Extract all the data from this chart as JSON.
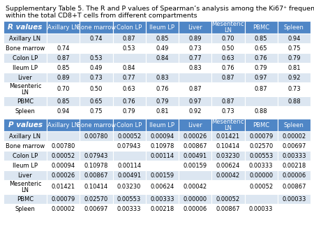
{
  "title_line1": "Supplementary Table 5. The R and P values of Spearman’s analysis among the Ki67⁺ frequency",
  "title_line2": "within the total CD8+T cells from different compartments",
  "columns": [
    "Axillary LN",
    "Bone marrow",
    "Colon LP",
    "Ileum LP",
    "Liver",
    "Mesenteric\nLN",
    "PBMC",
    "Spleen"
  ],
  "r_rows": [
    [
      "Axillary LN",
      "",
      "0.74",
      "0.87",
      "0.85",
      "0.89",
      "0.70",
      "0.85",
      "0.94"
    ],
    [
      "Bone marrow",
      "0.74",
      "",
      "0.53",
      "0.49",
      "0.73",
      "0.50",
      "0.65",
      "0.75"
    ],
    [
      "Colon LP",
      "0.87",
      "0.53",
      "",
      "0.84",
      "0.77",
      "0.63",
      "0.76",
      "0.79"
    ],
    [
      "Ileum LP",
      "0.85",
      "0.49",
      "0.84",
      "",
      "0.83",
      "0.76",
      "0.79",
      "0.81"
    ],
    [
      "Liver",
      "0.89",
      "0.73",
      "0.77",
      "0.83",
      "",
      "0.87",
      "0.97",
      "0.92"
    ],
    [
      "Mesenteric\nLN",
      "0.70",
      "0.50",
      "0.63",
      "0.76",
      "0.87",
      "",
      "0.87",
      "0.73"
    ],
    [
      "PBMC",
      "0.85",
      "0.65",
      "0.76",
      "0.79",
      "0.97",
      "0.87",
      "",
      "0.88"
    ],
    [
      "Spleen",
      "0.94",
      "0.75",
      "0.79",
      "0.81",
      "0.92",
      "0.73",
      "0.88",
      ""
    ]
  ],
  "p_rows": [
    [
      "Axillary LN",
      "",
      "0.00780",
      "0.00052",
      "0.00094",
      "0.00026",
      "0.01421",
      "0.00079",
      "0.00002"
    ],
    [
      "Bone marrow",
      "0.00780",
      "",
      "0.07943",
      "0.10978",
      "0.00867",
      "0.10414",
      "0.02570",
      "0.00697"
    ],
    [
      "Colon LP",
      "0.00052",
      "0.07943",
      "",
      "0.00114",
      "0.00491",
      "0.03230",
      "0.00553",
      "0.00333"
    ],
    [
      "Ileum LP",
      "0.00094",
      "0.10978",
      "0.00114",
      "",
      "0.00159",
      "0.00624",
      "0.00333",
      "0.00218"
    ],
    [
      "Liver",
      "0.00026",
      "0.00867",
      "0.00491",
      "0.00159",
      "",
      "0.00042",
      "0.00000",
      "0.00006"
    ],
    [
      "Mesenteric\nLN",
      "0.01421",
      "0.10414",
      "0.03230",
      "0.00624",
      "0.00042",
      "",
      "0.00052",
      "0.00867"
    ],
    [
      "PBMC",
      "0.00079",
      "0.02570",
      "0.00553",
      "0.00333",
      "0.00000",
      "0.00052",
      "",
      "0.00033"
    ],
    [
      "Spleen",
      "0.00002",
      "0.00697",
      "0.00333",
      "0.00218",
      "0.00006",
      "0.00867",
      "0.00033",
      ""
    ]
  ],
  "header_bg": "#4f86c6",
  "header_text": "#ffffff",
  "row_bg_even": "#dce6f1",
  "row_bg_odd": "#ffffff",
  "title_fontsize": 6.8,
  "header_fontsize": 6.0,
  "cell_fontsize": 6.0,
  "label_fontsize": 6.0
}
